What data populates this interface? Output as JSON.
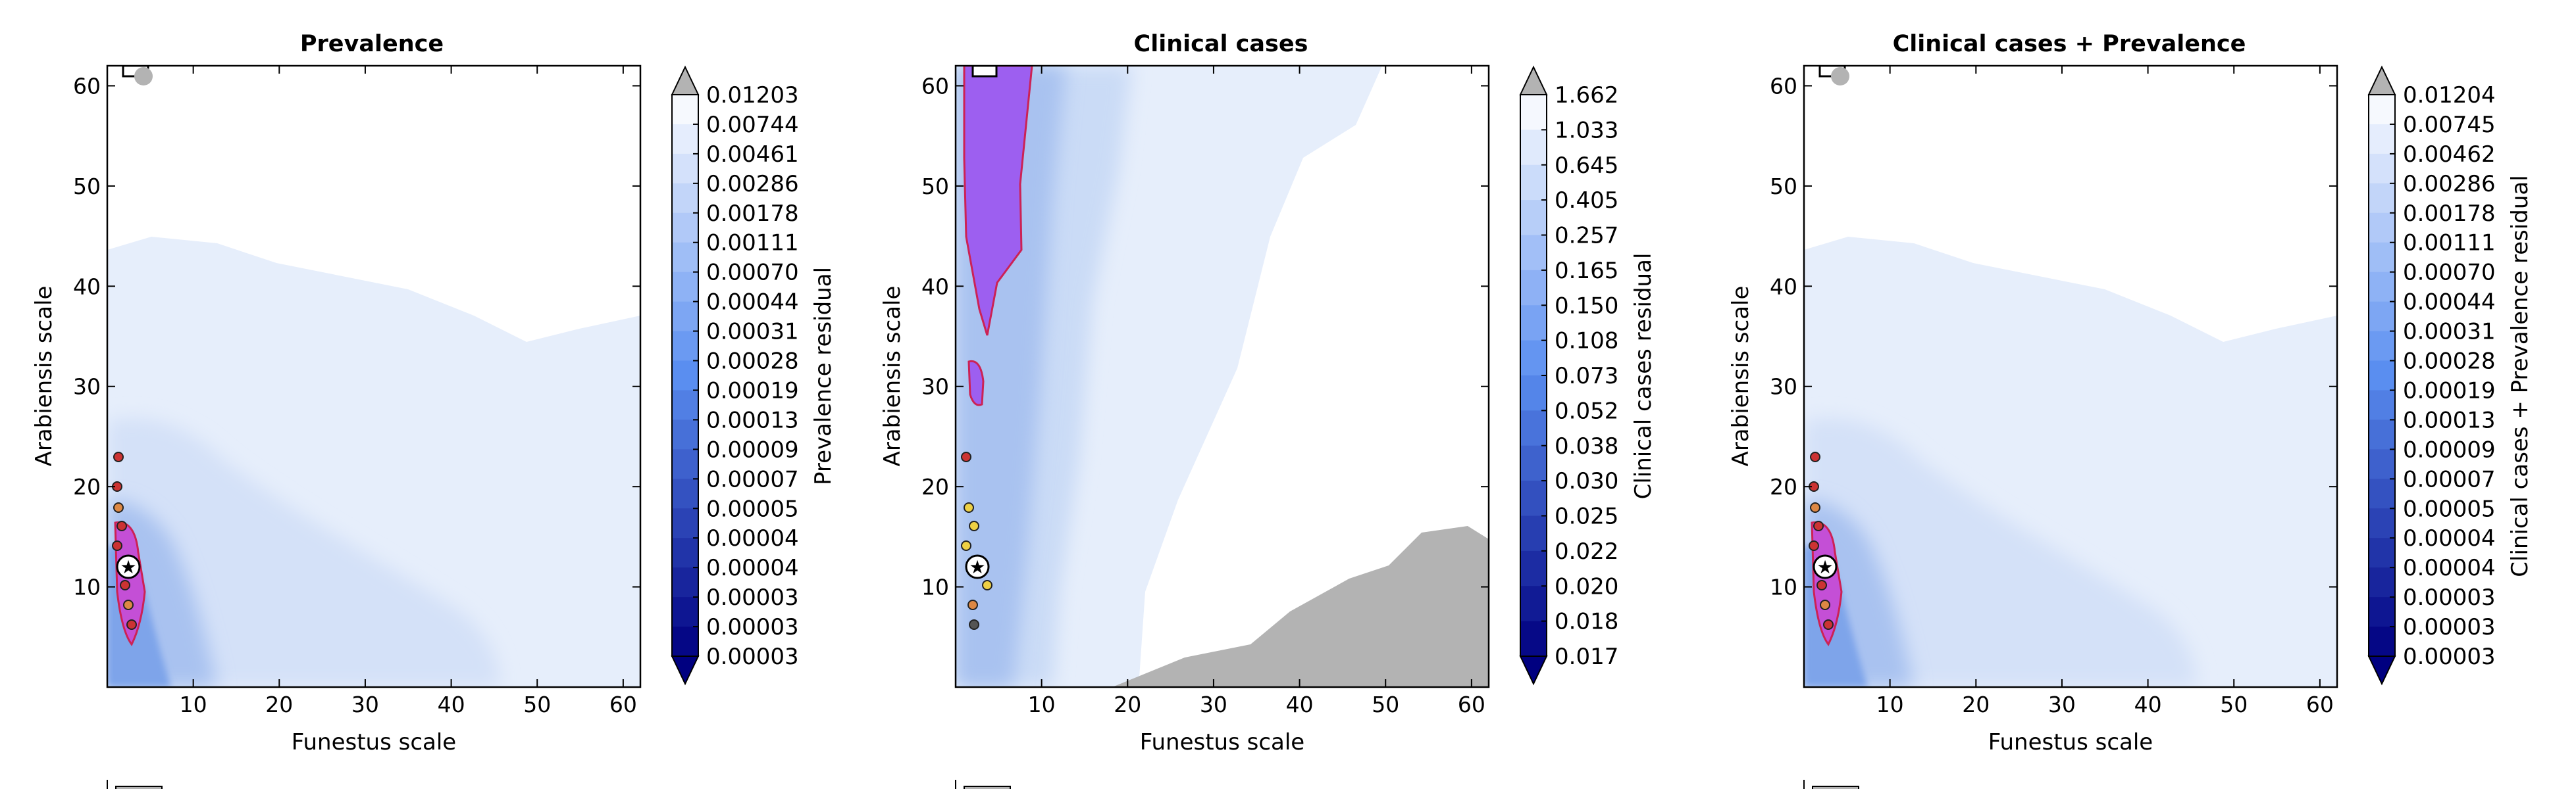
{
  "chart_data": [
    {
      "type": "heatmap",
      "title": "Prevalence",
      "xlabel": "Funestus scale",
      "ylabel": "Arabiensis scale",
      "xlim": [
        0,
        62
      ],
      "ylim": [
        0,
        62
      ],
      "xticks": [
        10,
        20,
        30,
        40,
        50,
        60
      ],
      "yticks": [
        10,
        20,
        30,
        40,
        50,
        60
      ],
      "colorbar_label": "Prevalence residual",
      "colorbar_levels": [
        "0.01203",
        "0.00744",
        "0.00461",
        "0.00286",
        "0.00178",
        "0.00111",
        "0.00070",
        "0.00044",
        "0.00031",
        "0.00028",
        "0.00019",
        "0.00013",
        "0.00009",
        "0.00007",
        "0.00005",
        "0.00004",
        "0.00004",
        "0.00003",
        "0.00003",
        "0.00003"
      ],
      "grid": false,
      "highlight_color": "#9933ee"
    },
    {
      "type": "heatmap",
      "title": "Clinical cases",
      "xlabel": "Funestus scale",
      "ylabel": "Arabiensis scale",
      "xlim": [
        0,
        62
      ],
      "ylim": [
        0,
        62
      ],
      "xticks": [
        10,
        20,
        30,
        40,
        50,
        60
      ],
      "yticks": [
        10,
        20,
        30,
        40,
        50,
        60
      ],
      "colorbar_label": "Clinical cases residual",
      "colorbar_levels": [
        "1.662",
        "1.033",
        "0.645",
        "0.405",
        "0.257",
        "0.165",
        "0.150",
        "0.108",
        "0.073",
        "0.052",
        "0.038",
        "0.030",
        "0.025",
        "0.022",
        "0.020",
        "0.018",
        "0.017"
      ],
      "grid": false,
      "highlight_color": "#9933ee"
    },
    {
      "type": "heatmap",
      "title": "Clinical cases + Prevalence",
      "xlabel": "Funestus scale",
      "ylabel": "Arabiensis scale",
      "xlim": [
        0,
        62
      ],
      "ylim": [
        0,
        62
      ],
      "xticks": [
        10,
        20,
        30,
        40,
        50,
        60
      ],
      "yticks": [
        10,
        20,
        30,
        40,
        50,
        60
      ],
      "colorbar_label": "Clinical cases + Prevalence residual",
      "colorbar_levels": [
        "0.01204",
        "0.00745",
        "0.00462",
        "0.00286",
        "0.00178",
        "0.00111",
        "0.00070",
        "0.00044",
        "0.00031",
        "0.00028",
        "0.00019",
        "0.00013",
        "0.00009",
        "0.00007",
        "0.00005",
        "0.00004",
        "0.00004",
        "0.00003",
        "0.00003",
        "0.00003"
      ],
      "grid": false,
      "highlight_color": "#9933ee"
    }
  ]
}
